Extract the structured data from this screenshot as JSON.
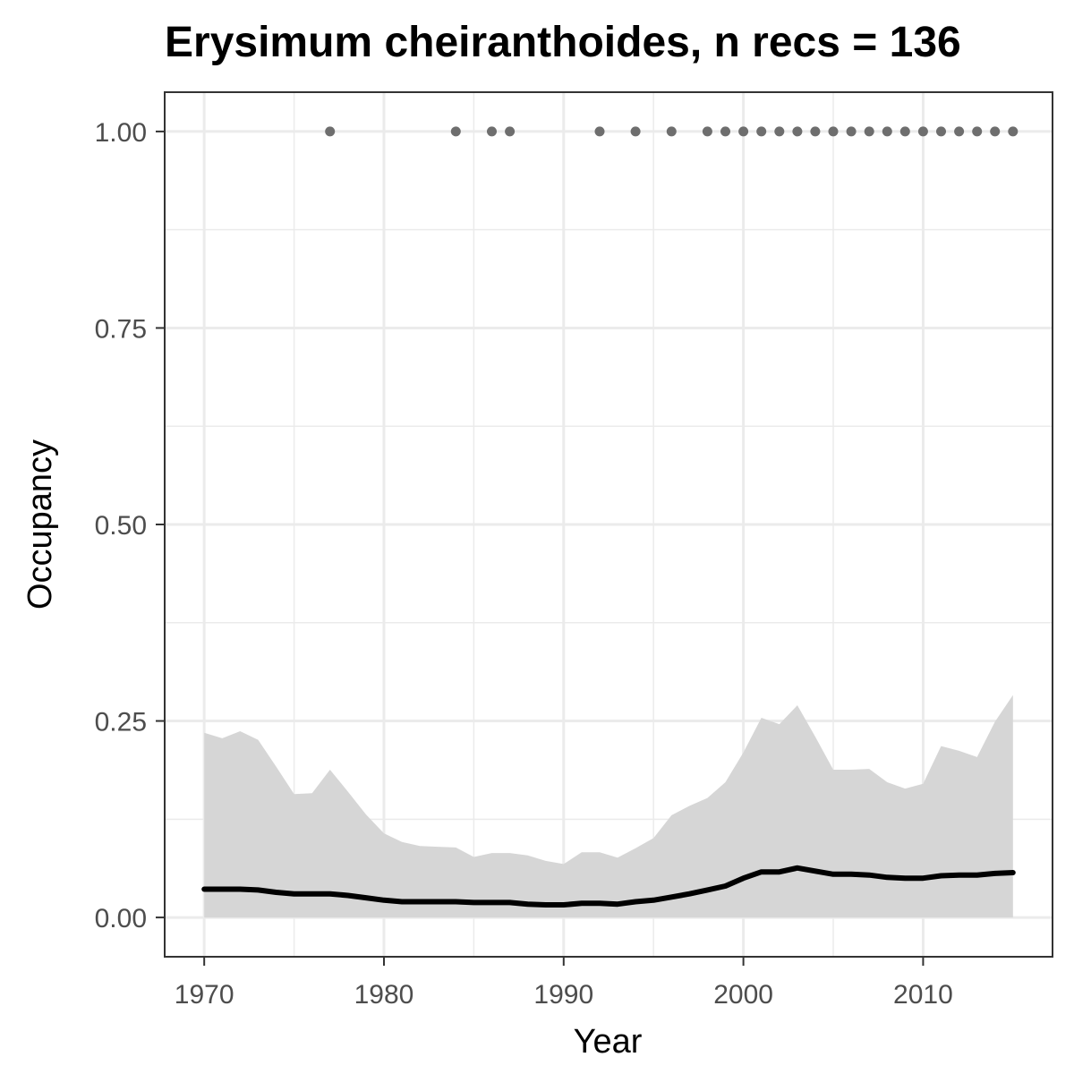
{
  "chart_data": {
    "type": "line",
    "title": "Erysimum cheiranthoides, n recs = 136",
    "xlabel": "Year",
    "ylabel": "Occupancy",
    "xlim": [
      1967.8,
      2017.2
    ],
    "ylim": [
      -0.05,
      1.05
    ],
    "x_ticks": [
      1970,
      1980,
      1990,
      2000,
      2010
    ],
    "y_ticks": [
      0.0,
      0.25,
      0.5,
      0.75,
      1.0
    ],
    "y_tick_labels": [
      "0.00",
      "0.25",
      "0.50",
      "0.75",
      "1.00"
    ],
    "grid": true,
    "legend": "none",
    "colors": {
      "ribbon": "#d6d6d6",
      "line": "#000000",
      "points": "#6e6e6e",
      "grid": "#ebebeb",
      "panel_border": "#333333",
      "tick_label": "#4d4d4d"
    },
    "series": [
      {
        "kind": "line",
        "x": [
          1970,
          1971,
          1972,
          1973,
          1974,
          1975,
          1976,
          1977,
          1978,
          1979,
          1980,
          1981,
          1982,
          1983,
          1984,
          1985,
          1986,
          1987,
          1988,
          1989,
          1990,
          1991,
          1992,
          1993,
          1994,
          1995,
          1996,
          1997,
          1998,
          1999,
          2000,
          2001,
          2002,
          2003,
          2004,
          2005,
          2006,
          2007,
          2008,
          2009,
          2010,
          2011,
          2012,
          2013,
          2014,
          2015
        ],
        "values": [
          0.036,
          0.036,
          0.036,
          0.035,
          0.032,
          0.03,
          0.03,
          0.03,
          0.028,
          0.025,
          0.022,
          0.02,
          0.02,
          0.02,
          0.02,
          0.019,
          0.019,
          0.019,
          0.017,
          0.016,
          0.016,
          0.018,
          0.018,
          0.017,
          0.02,
          0.022,
          0.026,
          0.03,
          0.035,
          0.04,
          0.05,
          0.058,
          0.058,
          0.063,
          0.059,
          0.055,
          0.055,
          0.054,
          0.051,
          0.05,
          0.05,
          0.053,
          0.054,
          0.054,
          0.056,
          0.057
        ]
      },
      {
        "kind": "ribbon",
        "x": [
          1970,
          1971,
          1972,
          1973,
          1974,
          1975,
          1976,
          1977,
          1978,
          1979,
          1980,
          1981,
          1982,
          1983,
          1984,
          1985,
          1986,
          1987,
          1988,
          1989,
          1990,
          1991,
          1992,
          1993,
          1994,
          1995,
          1996,
          1997,
          1998,
          1999,
          2000,
          2001,
          2002,
          2003,
          2004,
          2005,
          2006,
          2007,
          2008,
          2009,
          2010,
          2011,
          2012,
          2013,
          2014,
          2015
        ],
        "lower": [
          0,
          0,
          0,
          0,
          0,
          0,
          0,
          0,
          0,
          0,
          0,
          0,
          0,
          0,
          0,
          0,
          0,
          0,
          0,
          0,
          0,
          0,
          0,
          0,
          0,
          0,
          0,
          0,
          0,
          0,
          0,
          0,
          0,
          0,
          0,
          0,
          0,
          0,
          0,
          0,
          0,
          0,
          0,
          0,
          0,
          0
        ],
        "upper": [
          0.235,
          0.228,
          0.237,
          0.226,
          0.192,
          0.157,
          0.158,
          0.188,
          0.16,
          0.131,
          0.107,
          0.096,
          0.091,
          0.09,
          0.089,
          0.077,
          0.082,
          0.082,
          0.079,
          0.072,
          0.068,
          0.083,
          0.083,
          0.076,
          0.088,
          0.101,
          0.13,
          0.142,
          0.152,
          0.172,
          0.21,
          0.254,
          0.246,
          0.27,
          0.23,
          0.188,
          0.188,
          0.189,
          0.172,
          0.164,
          0.17,
          0.218,
          0.212,
          0.204,
          0.249,
          0.283
        ]
      },
      {
        "kind": "points",
        "x": [
          1977,
          1984,
          1986,
          1987,
          1992,
          1994,
          1996,
          1998,
          1999,
          2000,
          2001,
          2002,
          2003,
          2004,
          2005,
          2006,
          2007,
          2008,
          2009,
          2010,
          2011,
          2012,
          2013,
          2014,
          2015
        ],
        "values": [
          1,
          1,
          1,
          1,
          1,
          1,
          1,
          1,
          1,
          1,
          1,
          1,
          1,
          1,
          1,
          1,
          1,
          1,
          1,
          1,
          1,
          1,
          1,
          1,
          1
        ]
      }
    ]
  }
}
